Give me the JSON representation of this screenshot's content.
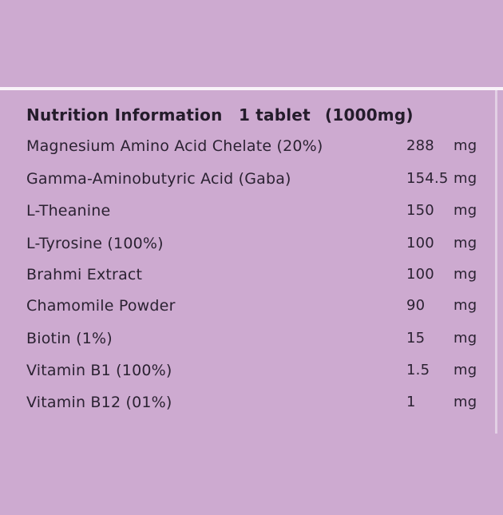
{
  "label": {
    "header": {
      "title": "Nutrition Information",
      "serving": "1 tablet",
      "serving_size": "(1000mg)"
    },
    "rows": [
      {
        "name": "Magnesium Amino Acid Chelate (20%)",
        "amount": "288",
        "unit": "mg"
      },
      {
        "name": "Gamma-Aminobutyric Acid (Gaba)",
        "amount": "154.5",
        "unit": "mg"
      },
      {
        "name": "L-Theanine",
        "amount": "150",
        "unit": "mg"
      },
      {
        "name": "L-Tyrosine (100%)",
        "amount": "100",
        "unit": "mg"
      },
      {
        "name": "Brahmi Extract",
        "amount": "100",
        "unit": "mg"
      },
      {
        "name": "Chamomile Powder",
        "amount": "90",
        "unit": "mg"
      },
      {
        "name": "Biotin (1%)",
        "amount": "15",
        "unit": "mg"
      },
      {
        "name": "Vitamin B1 (100%)",
        "amount": "1.5",
        "unit": "mg"
      },
      {
        "name": "Vitamin B12 (01%)",
        "amount": "1",
        "unit": "mg"
      }
    ],
    "colors": {
      "background": "#cdaad0",
      "text": "#2b2232",
      "divider": "#f9f3f9"
    }
  }
}
